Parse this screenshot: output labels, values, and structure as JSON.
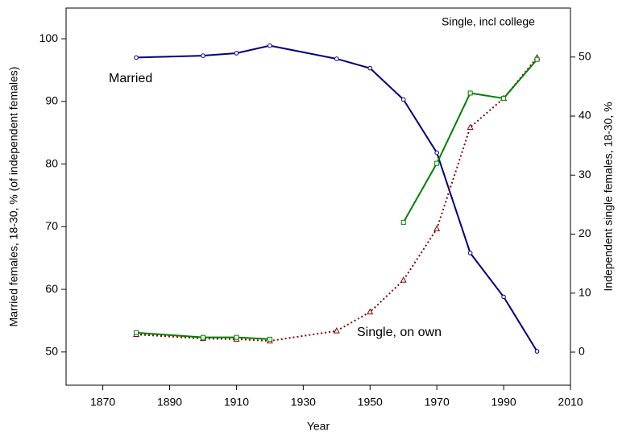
{
  "chart_data": {
    "type": "line",
    "xlabel": "Year",
    "ylabel": "Married females, 18-30, % (of independent females)",
    "y2label": "Independent single females, 18-30, %",
    "x": [
      1880,
      1900,
      1910,
      1920,
      1940,
      1950,
      1960,
      1970,
      1980,
      1990,
      2000
    ],
    "xlim": [
      1859,
      2010
    ],
    "xticks": [
      1870,
      1890,
      1910,
      1930,
      1950,
      1970,
      1990,
      2010
    ],
    "ylim": [
      44.7,
      104.9
    ],
    "yticks": [
      50,
      60,
      70,
      80,
      90,
      100
    ],
    "y2lim": [
      -5.6,
      58.3
    ],
    "y2ticks": [
      0,
      10,
      20,
      30,
      40,
      50
    ],
    "series": [
      {
        "name": "Married",
        "color": "#000080",
        "marker": "circle",
        "dashed": false,
        "values": [
          97.0,
          97.3,
          97.7,
          98.9,
          96.8,
          95.3,
          90.3,
          81.8,
          65.8,
          58.8,
          50.1
        ]
      },
      {
        "name": "Single, on own",
        "color": "#8b0000",
        "marker": "triangle",
        "dashed": true,
        "axis": "y2",
        "values": [
          3.0,
          2.3,
          2.2,
          1.9,
          3.6,
          6.8,
          12.2,
          20.9,
          38.1,
          43.0,
          49.9
        ]
      },
      {
        "name": "Single, incl college",
        "color": "#008000",
        "marker": "square",
        "dashed": false,
        "axis": "y2",
        "values": [
          3.3,
          2.5,
          2.5,
          2.2,
          null,
          null,
          22.0,
          32.0,
          43.9,
          43.0,
          49.6
        ]
      }
    ]
  }
}
